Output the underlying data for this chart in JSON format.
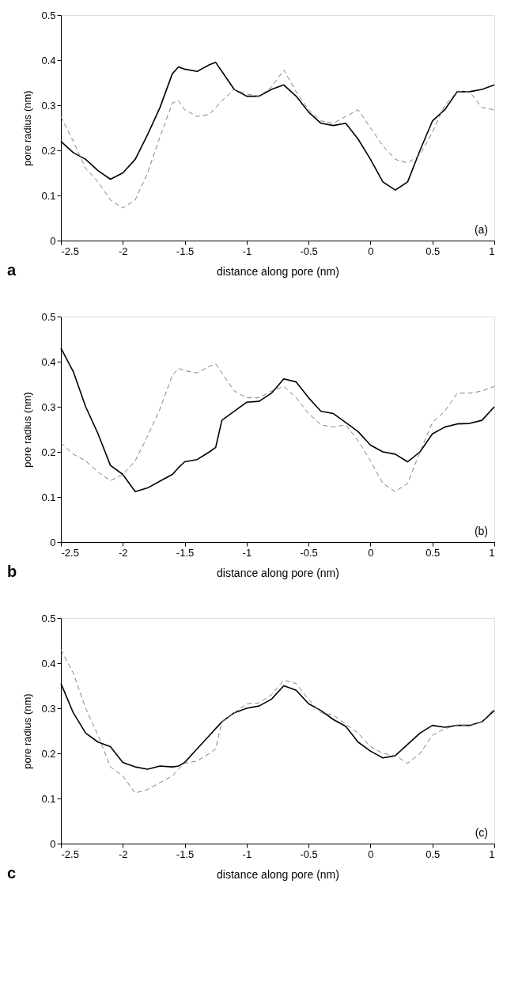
{
  "chart_data": [
    {
      "type": "line",
      "xlabel": "distance along pore (nm)",
      "ylabel": "pore radius (nm)",
      "annotations": [
        "(a)",
        "a"
      ],
      "xlim": [
        -2.5,
        1
      ],
      "ylim": [
        0,
        0.5
      ],
      "xticks": [
        -2.5,
        -2,
        -1.5,
        -1,
        -0.5,
        0,
        0.5,
        1
      ],
      "yticks": [
        0,
        0.1,
        0.2,
        0.3,
        0.4,
        0.5
      ],
      "grid": false,
      "marker": "none",
      "x": [
        -2.5,
        -2.4,
        -2.3,
        -2.2,
        -2.1,
        -2.0,
        -1.9,
        -1.8,
        -1.7,
        -1.6,
        -1.55,
        -1.5,
        -1.4,
        -1.3,
        -1.25,
        -1.2,
        -1.1,
        -1.0,
        -0.9,
        -0.8,
        -0.7,
        -0.6,
        -0.5,
        -0.4,
        -0.3,
        -0.2,
        -0.1,
        0,
        0.1,
        0.2,
        0.3,
        0.4,
        0.5,
        0.6,
        0.7,
        0.8,
        0.9,
        1.0
      ],
      "series": [
        {
          "color": "#000000",
          "line_style": "solid",
          "values": [
            0.22,
            0.195,
            0.18,
            0.155,
            0.136,
            0.15,
            0.18,
            0.235,
            0.295,
            0.37,
            0.385,
            0.38,
            0.375,
            0.39,
            0.395,
            0.375,
            0.335,
            0.32,
            0.32,
            0.335,
            0.345,
            0.32,
            0.285,
            0.26,
            0.255,
            0.26,
            0.225,
            0.18,
            0.13,
            0.112,
            0.13,
            0.2,
            0.265,
            0.29,
            0.33,
            0.33,
            0.335,
            0.345
          ]
        },
        {
          "color": "#808080",
          "line_style": "dashed",
          "values": [
            0.275,
            0.22,
            0.16,
            0.13,
            0.09,
            0.072,
            0.09,
            0.15,
            0.23,
            0.305,
            0.31,
            0.29,
            0.275,
            0.28,
            0.295,
            0.31,
            0.335,
            0.325,
            0.32,
            0.34,
            0.378,
            0.33,
            0.29,
            0.265,
            0.26,
            0.275,
            0.29,
            0.25,
            0.21,
            0.18,
            0.172,
            0.19,
            0.24,
            0.3,
            0.33,
            0.33,
            0.295,
            0.29
          ]
        }
      ]
    },
    {
      "type": "line",
      "xlabel": "distance along pore (nm)",
      "ylabel": "pore radius (nm)",
      "annotations": [
        "(b)",
        "b"
      ],
      "xlim": [
        -2.5,
        1
      ],
      "ylim": [
        0,
        0.5
      ],
      "xticks": [
        -2.5,
        -2,
        -1.5,
        -1,
        -0.5,
        0,
        0.5,
        1
      ],
      "yticks": [
        0,
        0.1,
        0.2,
        0.3,
        0.4,
        0.5
      ],
      "grid": false,
      "marker": "none",
      "x": [
        -2.5,
        -2.4,
        -2.3,
        -2.2,
        -2.1,
        -2.0,
        -1.9,
        -1.8,
        -1.7,
        -1.6,
        -1.55,
        -1.5,
        -1.4,
        -1.3,
        -1.25,
        -1.2,
        -1.1,
        -1.0,
        -0.9,
        -0.8,
        -0.7,
        -0.6,
        -0.5,
        -0.4,
        -0.3,
        -0.2,
        -0.1,
        0,
        0.1,
        0.2,
        0.3,
        0.4,
        0.5,
        0.6,
        0.7,
        0.8,
        0.9,
        1.0
      ],
      "series": [
        {
          "color": "#000000",
          "line_style": "solid",
          "values": [
            0.43,
            0.378,
            0.3,
            0.24,
            0.17,
            0.15,
            0.112,
            0.12,
            0.135,
            0.15,
            0.165,
            0.178,
            0.183,
            0.2,
            0.21,
            0.27,
            0.29,
            0.31,
            0.312,
            0.33,
            0.362,
            0.355,
            0.32,
            0.29,
            0.285,
            0.265,
            0.245,
            0.215,
            0.2,
            0.195,
            0.178,
            0.2,
            0.24,
            0.255,
            0.262,
            0.263,
            0.27,
            0.3
          ]
        },
        {
          "color": "#808080",
          "line_style": "dashed",
          "values": [
            0.22,
            0.195,
            0.18,
            0.155,
            0.136,
            0.15,
            0.18,
            0.235,
            0.295,
            0.37,
            0.385,
            0.38,
            0.375,
            0.39,
            0.395,
            0.375,
            0.335,
            0.32,
            0.32,
            0.335,
            0.345,
            0.32,
            0.285,
            0.26,
            0.255,
            0.26,
            0.225,
            0.18,
            0.13,
            0.112,
            0.13,
            0.2,
            0.265,
            0.29,
            0.33,
            0.33,
            0.335,
            0.345
          ]
        }
      ]
    },
    {
      "type": "line",
      "xlabel": "distance along pore (nm)",
      "ylabel": "pore radius (nm)",
      "annotations": [
        "(c)",
        "c"
      ],
      "xlim": [
        -2.5,
        1
      ],
      "ylim": [
        0,
        0.5
      ],
      "xticks": [
        -2.5,
        -2,
        -1.5,
        -1,
        -0.5,
        0,
        0.5,
        1
      ],
      "yticks": [
        0,
        0.1,
        0.2,
        0.3,
        0.4,
        0.5
      ],
      "grid": false,
      "marker": "none",
      "x": [
        -2.5,
        -2.4,
        -2.3,
        -2.2,
        -2.1,
        -2.0,
        -1.9,
        -1.8,
        -1.7,
        -1.6,
        -1.55,
        -1.5,
        -1.4,
        -1.3,
        -1.25,
        -1.2,
        -1.1,
        -1.0,
        -0.9,
        -0.8,
        -0.7,
        -0.6,
        -0.5,
        -0.4,
        -0.3,
        -0.2,
        -0.1,
        0,
        0.1,
        0.2,
        0.3,
        0.4,
        0.5,
        0.6,
        0.7,
        0.8,
        0.9,
        1.0
      ],
      "series": [
        {
          "color": "#000000",
          "line_style": "solid",
          "values": [
            0.355,
            0.29,
            0.245,
            0.225,
            0.215,
            0.18,
            0.17,
            0.165,
            0.172,
            0.17,
            0.172,
            0.18,
            0.21,
            0.24,
            0.255,
            0.27,
            0.29,
            0.3,
            0.305,
            0.32,
            0.35,
            0.34,
            0.31,
            0.295,
            0.275,
            0.26,
            0.225,
            0.205,
            0.19,
            0.195,
            0.22,
            0.245,
            0.262,
            0.258,
            0.262,
            0.262,
            0.27,
            0.295
          ]
        },
        {
          "color": "#808080",
          "line_style": "dashed",
          "values": [
            0.43,
            0.378,
            0.3,
            0.24,
            0.17,
            0.15,
            0.112,
            0.12,
            0.135,
            0.15,
            0.165,
            0.178,
            0.183,
            0.2,
            0.21,
            0.27,
            0.29,
            0.31,
            0.312,
            0.33,
            0.362,
            0.355,
            0.32,
            0.29,
            0.285,
            0.265,
            0.245,
            0.215,
            0.2,
            0.195,
            0.178,
            0.2,
            0.24,
            0.255,
            0.262,
            0.263,
            0.27,
            0.3
          ]
        }
      ]
    }
  ]
}
